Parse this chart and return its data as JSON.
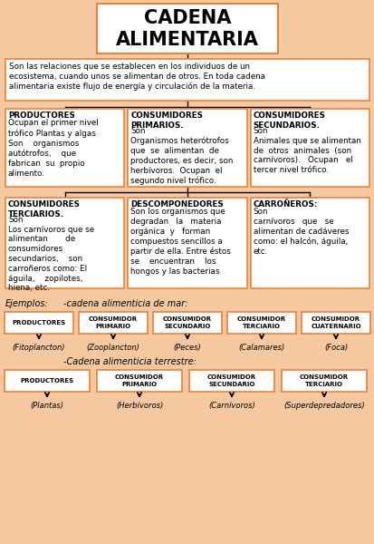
{
  "bg_color": "#f5c8a0",
  "box_bg": "#ffffff",
  "box_border": "#e8823a",
  "title": "CADENA\nALIMENTARIA",
  "title_fontsize": 15,
  "intro_text": "Son las relaciones que se establecen en los individuos de un\necosistema, cuando unos se alimentan de otros. En toda cadena\nalimentaria existe flujo de energía y circulación de la materia.",
  "boxes_row1": [
    {
      "title": "PRODUCTORES",
      "body": "Ocupan el primer nivel\ntrófico Plantas y algas\nSon    organismos\nautótrofos,    que\nfabrican  su  propio\nalimento."
    },
    {
      "title": "CONSUMIDORES\nPRIMARIOS.",
      "body": "Son\nOrganismos heterótrofos\nque  se  alimentan  de\nproductores, es decir, son\nherbívoros.  Ocupan  el\nsegundo nivel trófico."
    },
    {
      "title": "CONSUMIDORES\nSECUNDARIOS.",
      "body": "Son\nAnimales que se alimentan\nde  otros  animales  (son\ncarnívoros).   Ocupan   el\ntercer nivel trófico."
    }
  ],
  "boxes_row2": [
    {
      "title": "CONSUMIDORES\nTERCIARIOS.",
      "body": "Son\nLos carnívoros que se\nalimentan       de\nconsumidores\nsecundarios,    son\ncarroñeros como: El\náguila,    zopilotes,\nhiena, etc."
    },
    {
      "title": "DESCOMPONEDORES",
      "body": "Son los organismos que\ndegradan   la   materia\norgánica  y   forman\ncompuestos sencillos a\npartir de ella. Entre éstos\nse    encuentran    los\nhongos y las bacterias"
    },
    {
      "title": "CARROÑEROS:",
      "body": "Son\ncarnívoros   que   se\nalimentan de cadáveres\ncomo: el halcón, águila,\netc."
    }
  ],
  "ejemplos_label": "Ejemplos:",
  "mar_label": "-cadena alimenticia de mar:",
  "mar_boxes": [
    "PRODUCTORES",
    "CONSUMIDOR\nPRIMARIO",
    "CONSUMIDOR\nSECUNDARIO",
    "CONSUMIDOR\nTERCIARIO",
    "CONSUMIDOR\nCUATERNARIO"
  ],
  "mar_subtitles": [
    "(Fitoplancton)",
    "(Zooplancton)",
    "(Peces)",
    "(Calamares)",
    "(Foca)"
  ],
  "terrestre_label": "-Cadena alimenticia terrestre:",
  "terrestre_boxes": [
    "PRODUCTORES",
    "CONSUMIDOR\nPRIMARIO",
    "CONSUMIDOR\nSECUNDARIO",
    "CONSUMIDOR\nTERCIARIO"
  ],
  "terrestre_subtitles": [
    "(Plantas)",
    "(Herbívoros)",
    "(Carnívoros)",
    "(Superdepredadores)"
  ]
}
